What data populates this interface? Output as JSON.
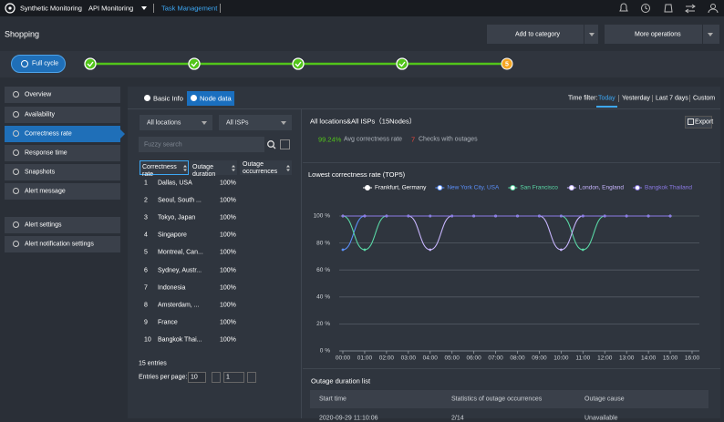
{
  "top_bar": {
    "product": "Synthetic Monitoring",
    "menu": "API Monitoring",
    "active_tab": "Task Management"
  },
  "header": {
    "title": "Shopping",
    "buttons": [
      "Add to category",
      "More operations"
    ]
  },
  "progress": {
    "button": "Full cycle",
    "current_step": "5"
  },
  "sidebar": {
    "groups": [
      [
        "Overview",
        "Availability",
        "Correctness rate",
        "Response time",
        "Snapshots",
        "Alert message"
      ],
      [
        "Alert settings",
        "Alert notification settings"
      ]
    ],
    "active": 2
  },
  "tabs": {
    "items": [
      "Basic Info",
      "Node data"
    ],
    "active": 1
  },
  "time_filter": {
    "label": "Time filter:",
    "options": [
      "Today",
      "Yesterday",
      "Last 7 days",
      "Custom"
    ],
    "active": 0
  },
  "filters": {
    "location": "All locations",
    "isp": "All ISPs",
    "search_placeholder": "Fuzzy search"
  },
  "node_table": {
    "columns": [
      "Correctness rate",
      "Outage duration",
      "Outage occurrences"
    ],
    "rows": [
      [
        "1",
        "Dallas, USA",
        "100%"
      ],
      [
        "2",
        "Seoul, South ...",
        "100%"
      ],
      [
        "3",
        "Tokyo, Japan",
        "100%"
      ],
      [
        "4",
        "Singapore",
        "100%"
      ],
      [
        "5",
        "Montreal, Can...",
        "100%"
      ],
      [
        "6",
        "Sydney, Austr...",
        "100%"
      ],
      [
        "7",
        "Indonesia",
        "100%"
      ],
      [
        "8",
        "Amsterdam, ...",
        "100%"
      ],
      [
        "9",
        "France",
        "100%"
      ],
      [
        "10",
        "Bangkok Thai...",
        "100%"
      ]
    ],
    "entries": "15 entries",
    "per_page_label": "Entries per page:",
    "per_page": "10",
    "page": "1"
  },
  "summary": {
    "title": "All locations&All ISPs（15Nodes）",
    "export": "Export",
    "avg_value": "99.24%",
    "avg_label": "Avg correctness rate",
    "outage_value": "7",
    "outage_label": "Checks with outages"
  },
  "chart_data": {
    "type": "line",
    "title": "Lowest correctness rate (TOP5)",
    "categories": [
      "00:00",
      "01:00",
      "02:00",
      "03:00",
      "04:00",
      "05:00",
      "06:00",
      "07:00",
      "08:00",
      "09:00",
      "10:00",
      "11:00",
      "12:00",
      "13:00",
      "14:00",
      "15:00",
      "16:00"
    ],
    "series": [
      {
        "name": "Frankfurt, Germany",
        "color": "#ffffff",
        "values": [
          100,
          100,
          100,
          100,
          100,
          100,
          100,
          100,
          100,
          100,
          100,
          100,
          100,
          100,
          100,
          100,
          null
        ]
      },
      {
        "name": "New York City, USA",
        "color": "#5b8ff9",
        "values": [
          75,
          100,
          100,
          100,
          100,
          100,
          100,
          100,
          100,
          100,
          100,
          100,
          100,
          100,
          100,
          100,
          null
        ]
      },
      {
        "name": "San Francisco",
        "color": "#5ad8a6",
        "values": [
          100,
          75,
          100,
          100,
          100,
          100,
          100,
          100,
          100,
          100,
          100,
          75,
          100,
          100,
          100,
          100,
          null
        ]
      },
      {
        "name": "London, England",
        "color": "#c8b6ff",
        "values": [
          100,
          100,
          100,
          100,
          75,
          100,
          100,
          100,
          100,
          100,
          75,
          100,
          100,
          100,
          100,
          100,
          null
        ]
      },
      {
        "name": "Bangkok Thailand",
        "color": "#8c7ae6",
        "values": [
          100,
          100,
          100,
          100,
          100,
          100,
          100,
          100,
          100,
          100,
          100,
          100,
          100,
          100,
          100,
          100,
          null
        ]
      }
    ],
    "ylim": [
      0,
      100
    ],
    "yticks": [
      {
        "value": 0,
        "label": "0 %"
      },
      {
        "value": 20,
        "label": "20 %"
      },
      {
        "value": 40,
        "label": "40 %"
      },
      {
        "value": 60,
        "label": "60 %"
      },
      {
        "value": 80,
        "label": "80 %"
      },
      {
        "value": 100,
        "label": "100 %"
      }
    ],
    "grid": true,
    "legend": "top"
  },
  "outage_list": {
    "title": "Outage duration list",
    "columns": [
      "Start time",
      "Statistics of outage occurrences",
      "Outage cause"
    ],
    "rows": [
      [
        "2020-09-29 11:10:06",
        "2/14",
        "Unavailable"
      ]
    ]
  }
}
